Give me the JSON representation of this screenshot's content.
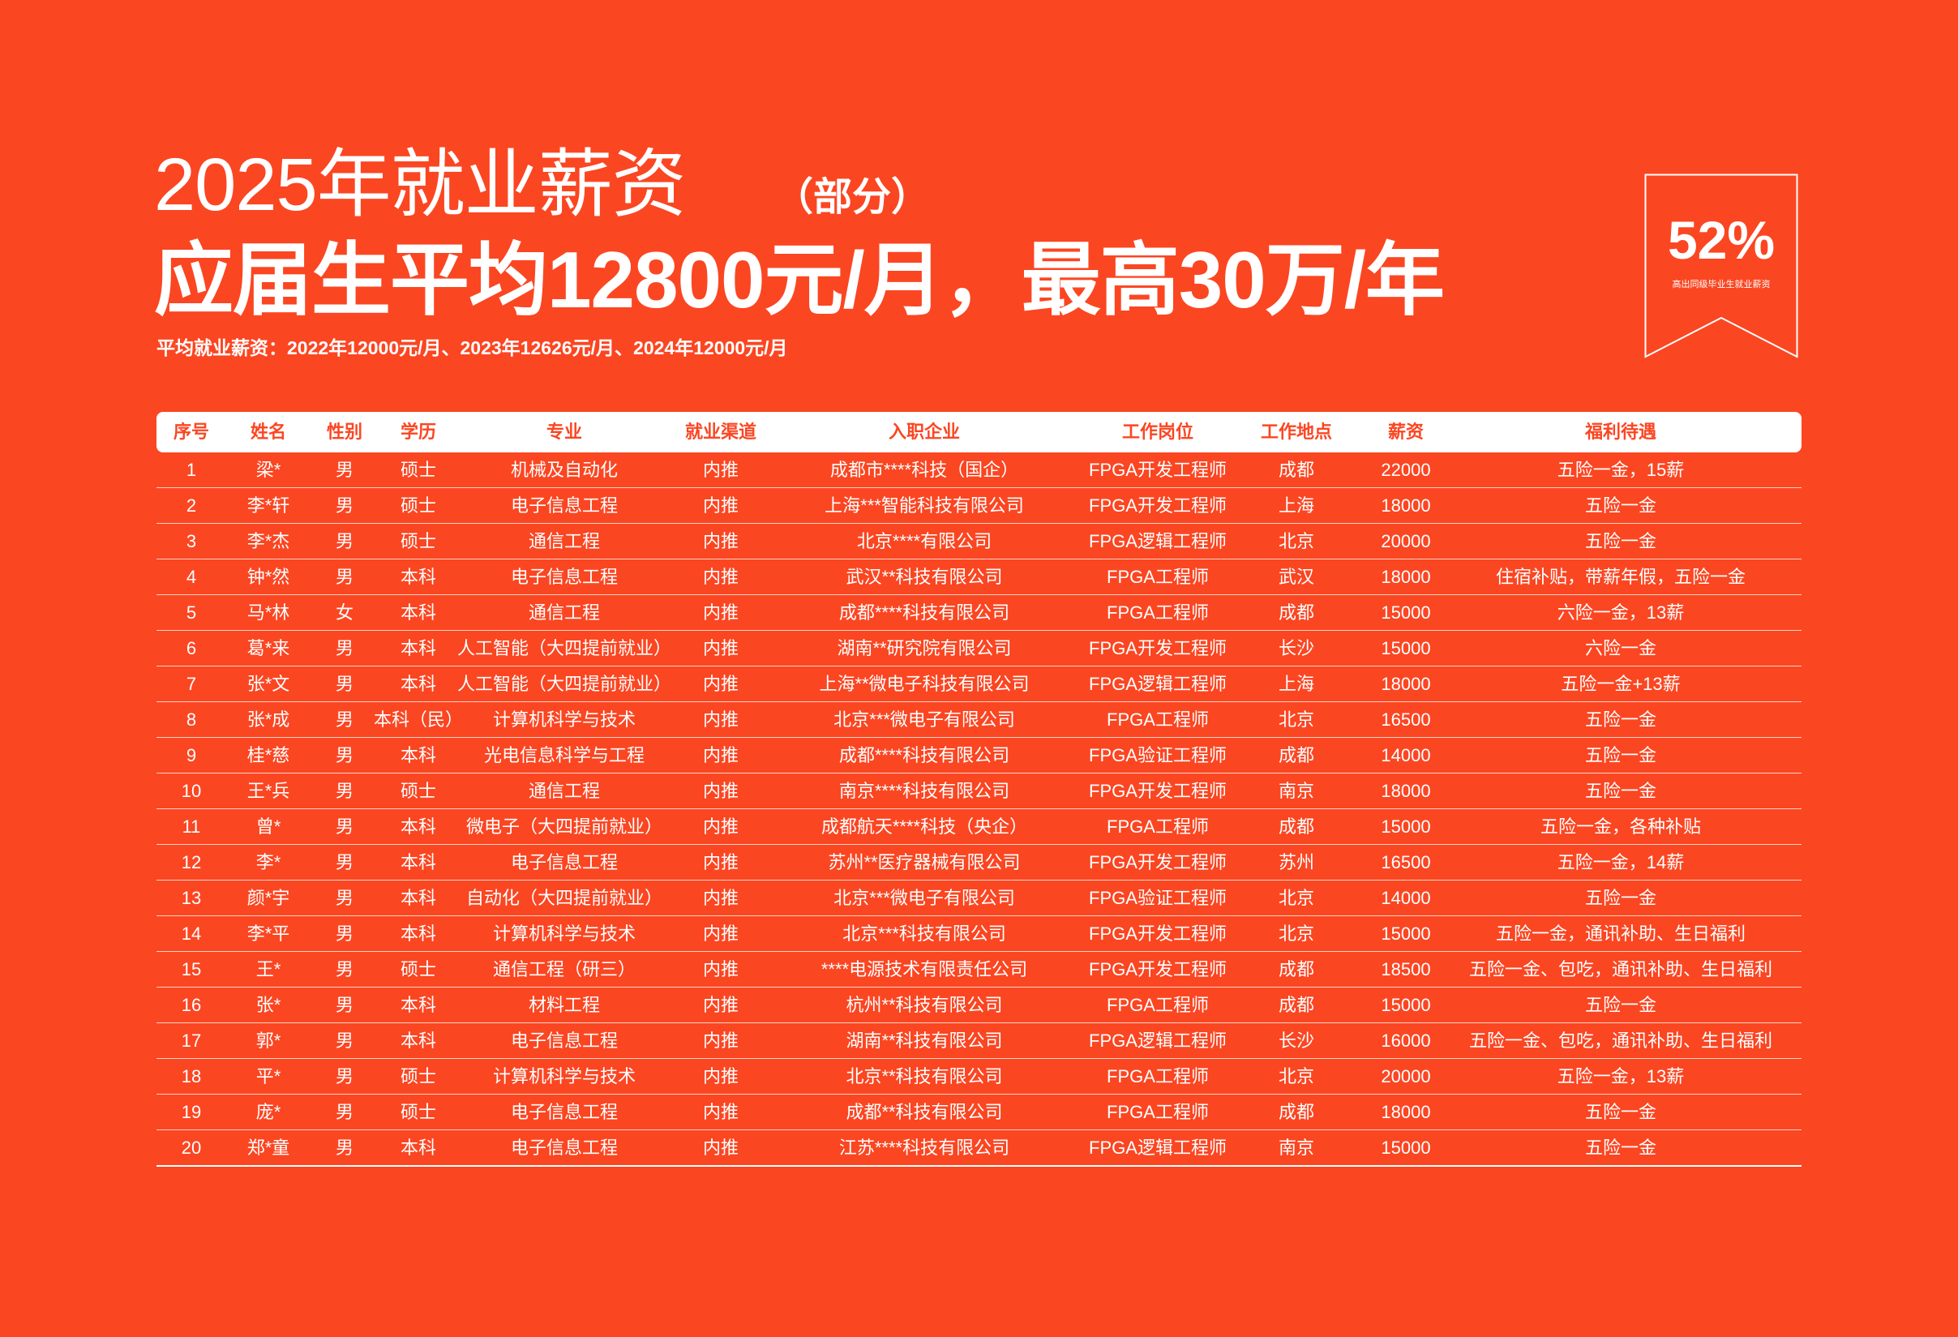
{
  "header": {
    "title": "2025年就业薪资",
    "title_note": "（部分）",
    "headline": "应届生平均12800元/月，最高30万/年",
    "subtitle": "平均就业薪资：2022年12000元/月、2023年12626元/月、2024年12000元/月"
  },
  "badge": {
    "value": "52%",
    "caption": "高出同级毕业生就业薪资"
  },
  "table": {
    "columns": [
      "序号",
      "姓名",
      "性别",
      "学历",
      "专业",
      "就业渠道",
      "入职企业",
      "工作岗位",
      "工作地点",
      "薪资",
      "福利待遇"
    ],
    "rows": [
      [
        1,
        "梁*",
        "男",
        "硕士",
        "机械及自动化",
        "内推",
        "成都市****科技（国企）",
        "FPGA开发工程师",
        "成都",
        22000,
        "五险一金，15薪"
      ],
      [
        2,
        "李*轩",
        "男",
        "硕士",
        "电子信息工程",
        "内推",
        "上海***智能科技有限公司",
        "FPGA开发工程师",
        "上海",
        18000,
        "五险一金"
      ],
      [
        3,
        "李*杰",
        "男",
        "硕士",
        "通信工程",
        "内推",
        "北京****有限公司",
        "FPGA逻辑工程师",
        "北京",
        20000,
        "五险一金"
      ],
      [
        4,
        "钟*然",
        "男",
        "本科",
        "电子信息工程",
        "内推",
        "武汉**科技有限公司",
        "FPGA工程师",
        "武汉",
        18000,
        "住宿补贴，带薪年假，五险一金"
      ],
      [
        5,
        "马*林",
        "女",
        "本科",
        "通信工程",
        "内推",
        "成都****科技有限公司",
        "FPGA工程师",
        "成都",
        15000,
        "六险一金，13薪"
      ],
      [
        6,
        "葛*来",
        "男",
        "本科",
        "人工智能（大四提前就业）",
        "内推",
        "湖南**研究院有限公司",
        "FPGA开发工程师",
        "长沙",
        15000,
        "六险一金"
      ],
      [
        7,
        "张*文",
        "男",
        "本科",
        "人工智能（大四提前就业）",
        "内推",
        "上海**微电子科技有限公司",
        "FPGA逻辑工程师",
        "上海",
        18000,
        "五险一金+13薪"
      ],
      [
        8,
        "张*成",
        "男",
        "本科（民）",
        "计算机科学与技术",
        "内推",
        "北京***微电子有限公司",
        "FPGA工程师",
        "北京",
        16500,
        "五险一金"
      ],
      [
        9,
        "桂*慈",
        "男",
        "本科",
        "光电信息科学与工程",
        "内推",
        "成都****科技有限公司",
        "FPGA验证工程师",
        "成都",
        14000,
        "五险一金"
      ],
      [
        10,
        "王*兵",
        "男",
        "硕士",
        "通信工程",
        "内推",
        "南京****科技有限公司",
        "FPGA开发工程师",
        "南京",
        18000,
        "五险一金"
      ],
      [
        11,
        "曾*",
        "男",
        "本科",
        "微电子（大四提前就业）",
        "内推",
        "成都航天****科技（央企）",
        "FPGA工程师",
        "成都",
        15000,
        "五险一金，各种补贴"
      ],
      [
        12,
        "李*",
        "男",
        "本科",
        "电子信息工程",
        "内推",
        "苏州**医疗器械有限公司",
        "FPGA开发工程师",
        "苏州",
        16500,
        "五险一金，14薪"
      ],
      [
        13,
        "颜*宇",
        "男",
        "本科",
        "自动化（大四提前就业）",
        "内推",
        "北京***微电子有限公司",
        "FPGA验证工程师",
        "北京",
        14000,
        "五险一金"
      ],
      [
        14,
        "李*平",
        "男",
        "本科",
        "计算机科学与技术",
        "内推",
        "北京***科技有限公司",
        "FPGA开发工程师",
        "北京",
        15000,
        "五险一金，通讯补助、生日福利"
      ],
      [
        15,
        "王*",
        "男",
        "硕士",
        "通信工程（研三）",
        "内推",
        "****电源技术有限责任公司",
        "FPGA开发工程师",
        "成都",
        18500,
        "五险一金、包吃，通讯补助、生日福利"
      ],
      [
        16,
        "张*",
        "男",
        "本科",
        "材料工程",
        "内推",
        "杭州**科技有限公司",
        "FPGA工程师",
        "成都",
        15000,
        "五险一金"
      ],
      [
        17,
        "郭*",
        "男",
        "本科",
        "电子信息工程",
        "内推",
        "湖南**科技有限公司",
        "FPGA逻辑工程师",
        "长沙",
        16000,
        "五险一金、包吃，通讯补助、生日福利"
      ],
      [
        18,
        "平*",
        "男",
        "硕士",
        "计算机科学与技术",
        "内推",
        "北京**科技有限公司",
        "FPGA工程师",
        "北京",
        20000,
        "五险一金，13薪"
      ],
      [
        19,
        "庞*",
        "男",
        "硕士",
        "电子信息工程",
        "内推",
        "成都**科技有限公司",
        "FPGA工程师",
        "成都",
        18000,
        "五险一金"
      ],
      [
        20,
        "郑*童",
        "男",
        "本科",
        "电子信息工程",
        "内推",
        "江苏****科技有限公司",
        "FPGA逻辑工程师",
        "南京",
        15000,
        "五险一金"
      ]
    ]
  }
}
